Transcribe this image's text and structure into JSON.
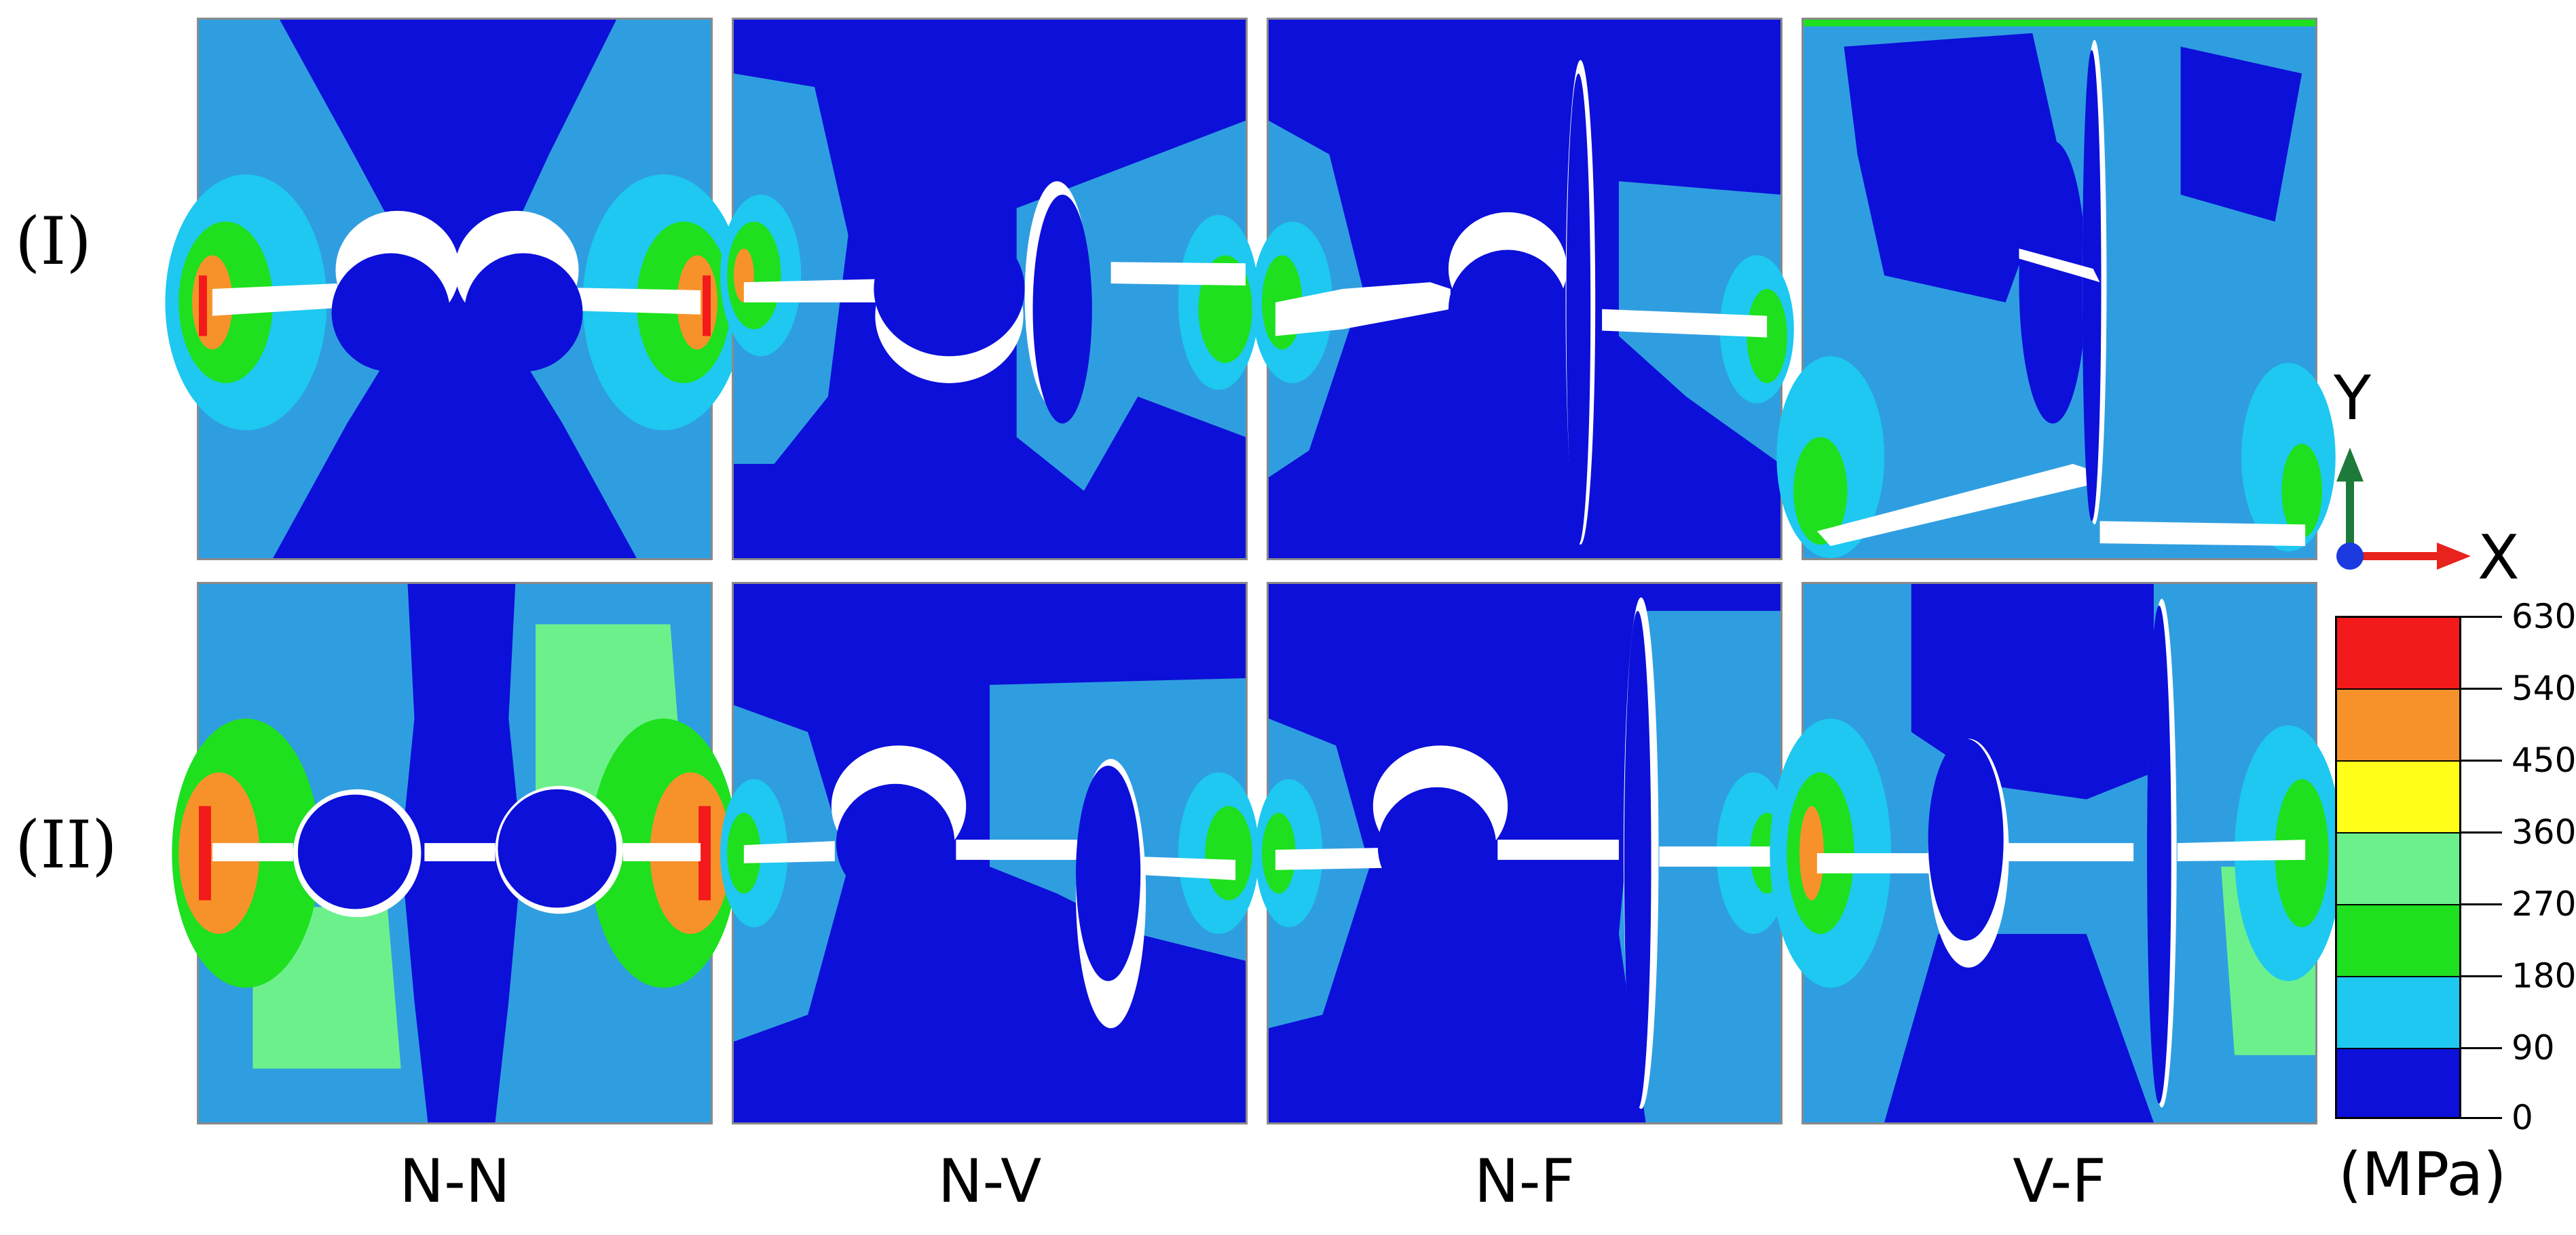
{
  "rows": [
    {
      "label": "(I)"
    },
    {
      "label": "(II)"
    }
  ],
  "columns": [
    {
      "label": "N-N"
    },
    {
      "label": "N-V"
    },
    {
      "label": "N-F"
    },
    {
      "label": "V-F"
    }
  ],
  "axes": {
    "y_label": "Y",
    "x_label": "X",
    "y_color": "#1e7a3a",
    "x_color": "#e8221c",
    "origin_color": "#1a3ae0"
  },
  "legend": {
    "unit": "(MPa)",
    "ticks": [
      "630",
      "540",
      "450",
      "360",
      "270",
      "180",
      "90",
      "0"
    ],
    "colors": [
      "#f21a1a",
      "#f7922a",
      "#ffff1a",
      "#6cf08c",
      "#1ee01e",
      "#1ec8f0",
      "#0c10d8"
    ]
  },
  "palette": {
    "deep_blue": "#0c10d8",
    "light_blue": "#2f9ee0",
    "cyan": "#1ec8f0",
    "green": "#1ee01e",
    "light_green": "#6cf08c",
    "orange": "#f7922a",
    "red": "#f21a1a",
    "void": "#ffffff"
  }
}
